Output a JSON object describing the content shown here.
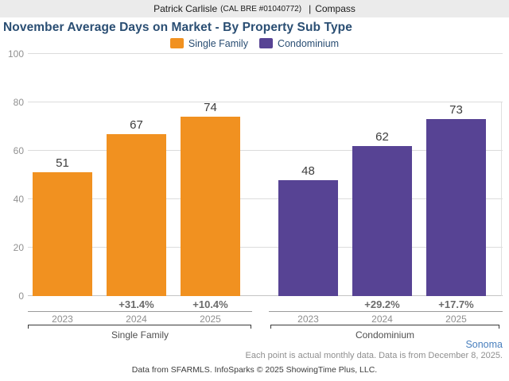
{
  "header": {
    "agent": "Patrick Carlisle",
    "license": "(CAL BRE #01040772)",
    "separator": "|",
    "brokerage": "Compass"
  },
  "title": "November Average Days on Market - By Property Sub Type",
  "legend": [
    {
      "label": "Single Family",
      "color": "#f19120"
    },
    {
      "label": "Condominium",
      "color": "#574394"
    }
  ],
  "chart_data": {
    "type": "bar",
    "title": "November Average Days on Market - By Property Sub Type",
    "ylabel": "",
    "xlabel": "",
    "ylim": [
      0,
      100
    ],
    "yticks": [
      0,
      20,
      40,
      60,
      80,
      100
    ],
    "grid": true,
    "legend_position": "top",
    "groups": [
      {
        "name": "Single Family",
        "color": "#f19120",
        "categories": [
          "2023",
          "2024",
          "2025"
        ],
        "values": [
          51,
          67,
          74
        ],
        "pct_change": [
          "",
          "+31.4%",
          "+10.4%"
        ]
      },
      {
        "name": "Condominium",
        "color": "#574394",
        "categories": [
          "2023",
          "2024",
          "2025"
        ],
        "values": [
          48,
          62,
          73
        ],
        "pct_change": [
          "",
          "+29.2%",
          "+17.7%"
        ]
      }
    ]
  },
  "footer": {
    "region": "Sonoma",
    "note": "Each point is actual monthly data. Data is from December 8, 2025.",
    "attribution": "Data from SFARMLS. InfoSparks © 2025 ShowingTime Plus, LLC."
  }
}
